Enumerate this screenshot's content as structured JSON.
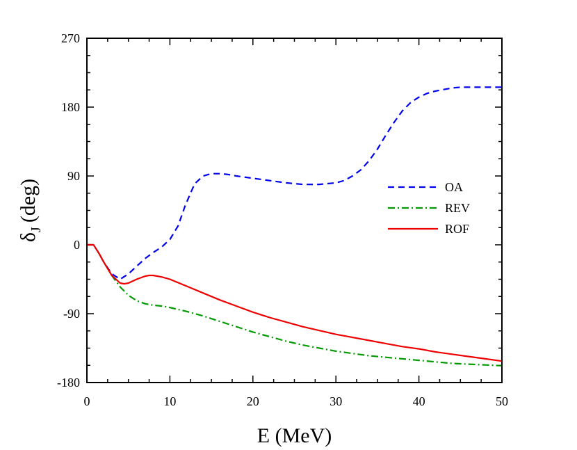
{
  "chart_data": {
    "type": "line",
    "title": "",
    "xlabel": "E (MeV)",
    "ylabel_main": "δ",
    "ylabel_sub": "J",
    "ylabel_unit": "(deg)",
    "xlim": [
      0,
      50
    ],
    "ylim": [
      -180,
      270
    ],
    "xticks": [
      0,
      10,
      20,
      30,
      40,
      50
    ],
    "yticks": [
      -180,
      -90,
      0,
      90,
      180,
      270
    ],
    "xtick_labels": [
      "0",
      "10",
      "20",
      "30",
      "40",
      "50"
    ],
    "ytick_labels": [
      "-180",
      "-90",
      "0",
      "90",
      "180",
      "270"
    ],
    "legend_position": "right-middle",
    "series": [
      {
        "name": "OA",
        "color": "#0000ee",
        "style": "dashed",
        "x": [
          0,
          0.8,
          1.5,
          2,
          3,
          4,
          5,
          6,
          7,
          8,
          9,
          10,
          11,
          11.8,
          12.5,
          13,
          14,
          15,
          16,
          17,
          18,
          20,
          22,
          24,
          26,
          28,
          29,
          30,
          31,
          32,
          33,
          34,
          35,
          36,
          37,
          38,
          39,
          40,
          41,
          42,
          43,
          44,
          45,
          46,
          47,
          48,
          49,
          50
        ],
        "y": [
          0,
          0,
          -12,
          -22,
          -38,
          -45,
          -38,
          -28,
          -18,
          -10,
          -3,
          7,
          25,
          50,
          68,
          80,
          90,
          93,
          93,
          92,
          90,
          87,
          84,
          81,
          79,
          79,
          80,
          81,
          84,
          90,
          98,
          110,
          125,
          143,
          160,
          175,
          186,
          193,
          198,
          201,
          203,
          205,
          206,
          206,
          206,
          206,
          206,
          206
        ]
      },
      {
        "name": "REV",
        "color": "#009900",
        "style": "dashdot",
        "x": [
          0,
          0.8,
          1.5,
          2,
          3,
          4,
          5,
          6,
          7,
          8,
          9,
          10,
          12,
          14,
          16,
          18,
          20,
          22,
          24,
          26,
          28,
          30,
          32,
          34,
          36,
          38,
          40,
          42,
          44,
          46,
          48,
          50
        ],
        "y": [
          0,
          0,
          -12,
          -22,
          -40,
          -55,
          -66,
          -73,
          -77,
          -79,
          -80,
          -82,
          -87,
          -93,
          -100,
          -107,
          -114,
          -120,
          -126,
          -131,
          -135,
          -139,
          -142,
          -145,
          -147,
          -149,
          -151,
          -153,
          -155,
          -156,
          -157,
          -158
        ]
      },
      {
        "name": "ROF",
        "color": "#ee0000",
        "style": "solid",
        "x": [
          0,
          0.8,
          1.5,
          2,
          3,
          4,
          4.5,
          5,
          6,
          7,
          7.5,
          8,
          9,
          10,
          12,
          14,
          16,
          18,
          20,
          22,
          24,
          26,
          28,
          30,
          32,
          34,
          36,
          38,
          40,
          42,
          44,
          46,
          48,
          50
        ],
        "y": [
          0,
          0,
          -12,
          -22,
          -40,
          -50,
          -51,
          -50,
          -45,
          -41,
          -40,
          -40,
          -42,
          -45,
          -54,
          -63,
          -72,
          -80,
          -88,
          -95,
          -101,
          -107,
          -112,
          -117,
          -121,
          -125,
          -129,
          -133,
          -136,
          -140,
          -143,
          -146,
          -149,
          -152
        ]
      }
    ]
  }
}
